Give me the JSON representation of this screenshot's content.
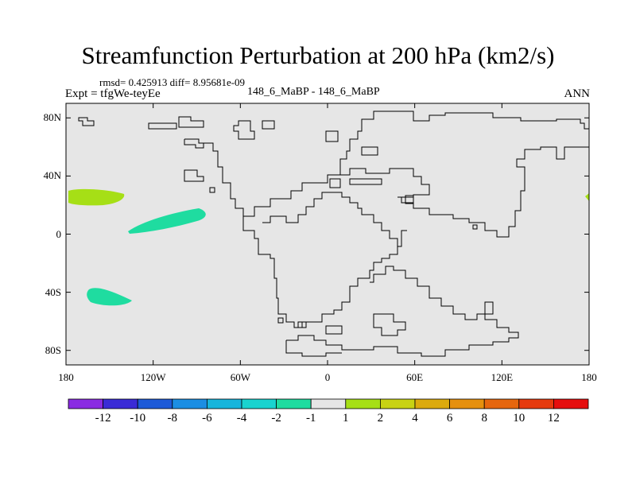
{
  "title": "Streamfunction Perturbation at 200 hPa (km2/s)",
  "stats": "rmsd= 0.425913 diff= 8.95681e-09",
  "expt": "Expt = tfgWe-teyEe",
  "center_label": "148_6_MaBP - 148_6_MaBP",
  "season": "ANN",
  "map": {
    "lon_range": [
      -180,
      180
    ],
    "lat_range": [
      -90,
      90
    ],
    "background": "#e6e6e6",
    "lat_ticks": [
      "80N",
      "40N",
      "0",
      "40S",
      "80S"
    ],
    "lon_ticks": [
      "180",
      "120W",
      "60W",
      "0",
      "60E",
      "120E",
      "180"
    ]
  },
  "colorbar": {
    "colors": [
      "#8a2be2",
      "#3a2bd6",
      "#1d5ad8",
      "#1b8ee3",
      "#17b5dc",
      "#19d3cf",
      "#1fdca0",
      "#e6e6e6",
      "#a6df16",
      "#c8d214",
      "#dcaa0e",
      "#e6900e",
      "#e6660e",
      "#e63a0e",
      "#e60e0e"
    ],
    "labels": [
      "-12",
      "-10",
      "-8",
      "-6",
      "-4",
      "-2",
      "-1",
      "1",
      "2",
      "4",
      "6",
      "8",
      "10",
      "12"
    ]
  },
  "anomaly_colors": {
    "positive": "#a6df16",
    "negative": "#1fdca0"
  }
}
